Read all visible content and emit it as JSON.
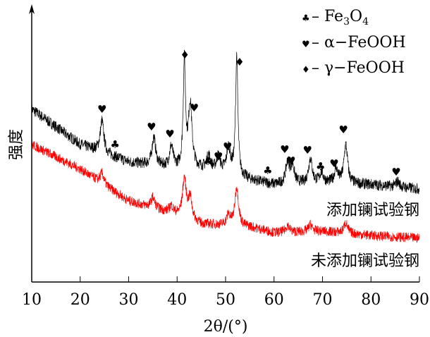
{
  "chart_data": {
    "type": "line",
    "xlabel": "2θ/(°)",
    "ylabel": "强度",
    "xlim": [
      10,
      90
    ],
    "xticks": [
      10,
      20,
      30,
      40,
      50,
      60,
      70,
      80,
      90
    ],
    "ylim": [
      0,
      390
    ],
    "grid": false,
    "legend_placement": "top-right",
    "legend": [
      {
        "symbol": "♣",
        "label": "Fe3O4",
        "formula": [
          "Fe",
          "3",
          "O",
          "4"
        ]
      },
      {
        "symbol": "♥",
        "label": "α−FeOOH"
      },
      {
        "symbol": "♦",
        "label": "γ−FeOOH"
      }
    ],
    "series": [
      {
        "name": "添加镧试验钢",
        "color": "#000000",
        "background": [
          [
            10,
            245
          ],
          [
            20,
            195
          ],
          [
            30,
            170
          ],
          [
            40,
            160
          ],
          [
            45,
            160
          ],
          [
            50,
            155
          ],
          [
            55,
            145
          ],
          [
            60,
            138
          ],
          [
            70,
            140
          ],
          [
            80,
            138
          ],
          [
            90,
            132
          ]
        ],
        "peaks": [
          [
            24.5,
            45
          ],
          [
            35.2,
            40
          ],
          [
            38.8,
            30
          ],
          [
            41.5,
            150
          ],
          [
            42.7,
            90
          ],
          [
            46.5,
            20
          ],
          [
            48.5,
            20
          ],
          [
            50.6,
            35
          ],
          [
            52.3,
            170
          ],
          [
            62.8,
            30
          ],
          [
            63.8,
            25
          ],
          [
            67.5,
            35
          ],
          [
            69.8,
            15
          ],
          [
            72.8,
            20
          ],
          [
            74.8,
            55
          ],
          [
            85.5,
            8
          ]
        ]
      },
      {
        "name": "未添加镧试验钢",
        "color": "#ff0000",
        "background": [
          [
            10,
            195
          ],
          [
            20,
            160
          ],
          [
            30,
            115
          ],
          [
            40,
            95
          ],
          [
            45,
            82
          ],
          [
            50,
            80
          ],
          [
            55,
            78
          ],
          [
            60,
            70
          ],
          [
            70,
            72
          ],
          [
            80,
            66
          ],
          [
            90,
            62
          ]
        ],
        "peaks": [
          [
            24.5,
            15
          ],
          [
            35,
            15
          ],
          [
            38.8,
            10
          ],
          [
            41.5,
            55
          ],
          [
            42.7,
            30
          ],
          [
            50.6,
            15
          ],
          [
            52.3,
            55
          ],
          [
            62.8,
            10
          ],
          [
            67.5,
            10
          ],
          [
            74.8,
            15
          ]
        ]
      }
    ],
    "markers": [
      {
        "symbol": "♥",
        "x": 24.5,
        "y": 245
      },
      {
        "symbol": "♥",
        "x": 34.7,
        "y": 220
      },
      {
        "symbol": "♥",
        "x": 38.5,
        "y": 210
      },
      {
        "symbol": "♥",
        "x": 43.5,
        "y": 247
      },
      {
        "symbol": "♥",
        "x": 48.5,
        "y": 178
      },
      {
        "symbol": "♥",
        "x": 50.4,
        "y": 192
      },
      {
        "symbol": "♥",
        "x": 62.2,
        "y": 188
      },
      {
        "symbol": "♥",
        "x": 63.5,
        "y": 172
      },
      {
        "symbol": "♥",
        "x": 66.9,
        "y": 187
      },
      {
        "symbol": "♥",
        "x": 72.4,
        "y": 168
      },
      {
        "symbol": "♥",
        "x": 74.3,
        "y": 216
      },
      {
        "symbol": "♥",
        "x": 85.2,
        "y": 156
      },
      {
        "symbol": "♣",
        "x": 27.2,
        "y": 195
      },
      {
        "symbol": "♣",
        "x": 46.4,
        "y": 171
      },
      {
        "symbol": "♣",
        "x": 58.7,
        "y": 158
      },
      {
        "symbol": "♣",
        "x": 69.6,
        "y": 164
      },
      {
        "symbol": "♦",
        "x": 41.6,
        "y": 322
      },
      {
        "symbol": "♦",
        "x": 52.9,
        "y": 312
      }
    ],
    "annotations": [
      "添加镧试验钢",
      "未添加镧试验钢"
    ]
  }
}
